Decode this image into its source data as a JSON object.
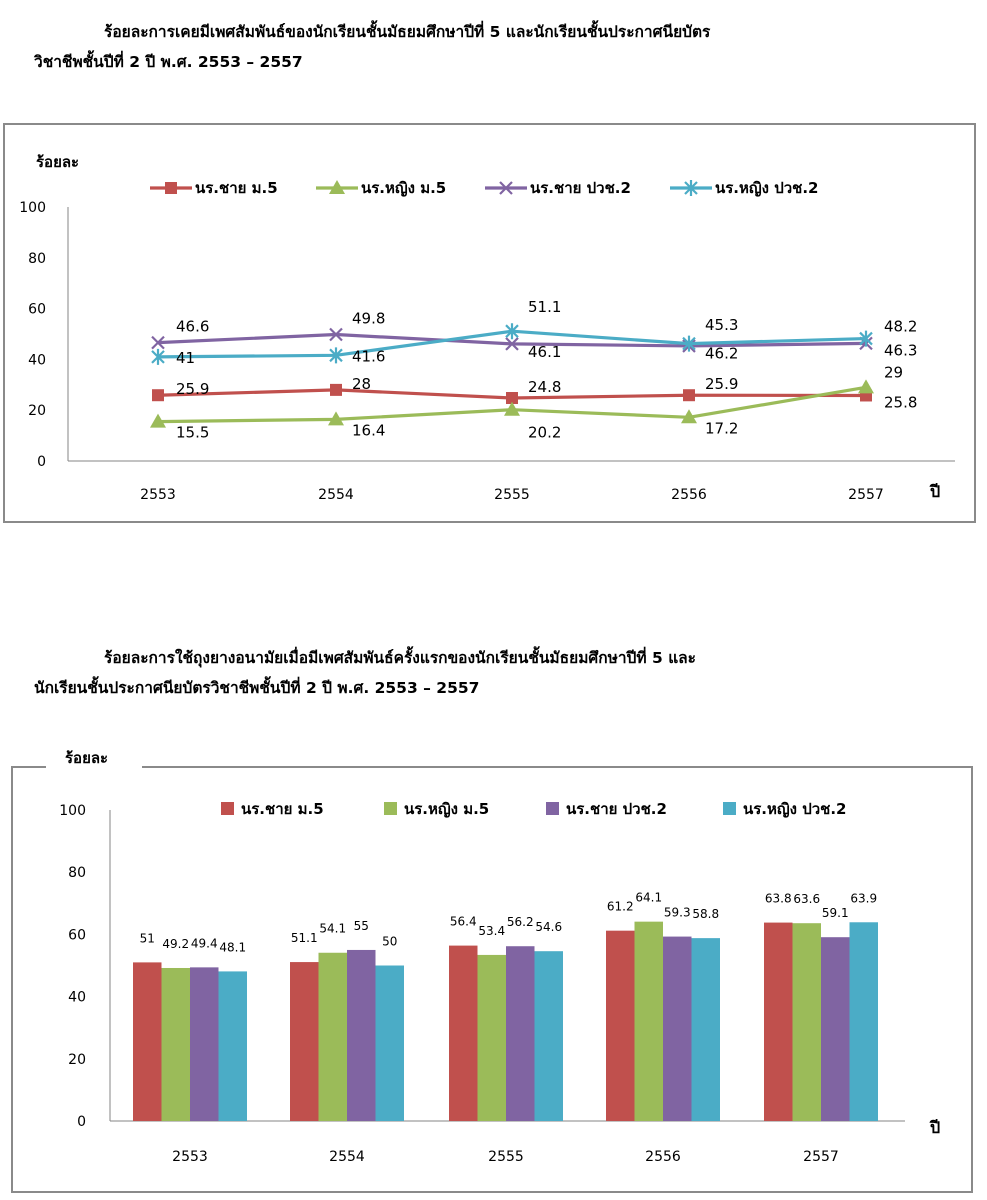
{
  "chart_data": [
    {
      "type": "line",
      "title": "ร้อยละการเคยมีเพศสัมพันธ์ของนักเรียนชั้นมัธยมศึกษาปีที่ 5  และนักเรียนชั้นประกาศนียบัตรวิชาชีพชั้นปีที่ 2 ปี พ.ศ. 2553 – 2557",
      "title_line1": "ร้อยละการเคยมีเพศสัมพันธ์ของนักเรียนชั้นมัธยมศึกษาปีที่ 5  และนักเรียนชั้นประกาศนียบัตร",
      "title_line2": "วิชาชีพชั้นปีที่ 2 ปี พ.ศ. 2553 – 2557",
      "ylabel": "ร้อยละ",
      "xlabel": "ปี",
      "categories": [
        "2553",
        "2554",
        "2555",
        "2556",
        "2557"
      ],
      "ylim": [
        0,
        100
      ],
      "yticks": [
        "0",
        "20",
        "40",
        "60",
        "80",
        "100"
      ],
      "series": [
        {
          "name": "นร.ชาย ม.5",
          "values": [
            25.9,
            28,
            24.8,
            25.9,
            25.8
          ],
          "color": "#C0504D",
          "marker": "square"
        },
        {
          "name": "นร.หญิง ม.5",
          "values": [
            15.5,
            16.4,
            20.2,
            17.2,
            29
          ],
          "color": "#9BBB59",
          "marker": "triangle"
        },
        {
          "name": "นร.ชาย ปวช.2",
          "values": [
            46.6,
            49.8,
            46.1,
            45.3,
            46.3
          ],
          "color": "#8064A2",
          "marker": "x"
        },
        {
          "name": "นร.หญิง ปวช.2",
          "values": [
            41,
            41.6,
            51.1,
            46.2,
            48.2
          ],
          "color": "#4BACC6",
          "marker": "star"
        }
      ]
    },
    {
      "type": "bar",
      "title": "ร้อยละการใช้ถุงยางอนามัยเมื่อมีเพศสัมพันธ์ครั้งแรกของนักเรียนชั้นมัธยมศึกษาปีที่ 5   และนักเรียนชั้นประกาศนียบัตรวิชาชีพชั้นปีที่ 2 ปี พ.ศ. 2553 – 2557",
      "title_line1": "ร้อยละการใช้ถุงยางอนามัยเมื่อมีเพศสัมพันธ์ครั้งแรกของนักเรียนชั้นมัธยมศึกษาปีที่ 5   และ",
      "title_line2": "นักเรียนชั้นประกาศนียบัตรวิชาชีพชั้นปีที่ 2 ปี พ.ศ. 2553 – 2557",
      "ylabel": "ร้อยละ",
      "xlabel": "ปี",
      "categories": [
        "2553",
        "2554",
        "2555",
        "2556",
        "2557"
      ],
      "ylim": [
        0,
        100
      ],
      "yticks": [
        "0",
        "20",
        "40",
        "60",
        "80",
        "100"
      ],
      "series": [
        {
          "name": "นร.ชาย ม.5",
          "values": [
            51,
            51.1,
            56.4,
            61.2,
            63.8
          ],
          "color": "#C0504D"
        },
        {
          "name": "นร.หญิง ม.5",
          "values": [
            49.2,
            54.1,
            53.4,
            64.1,
            63.6
          ],
          "color": "#9BBB59"
        },
        {
          "name": "นร.ชาย ปวช.2",
          "values": [
            49.4,
            55,
            56.2,
            59.3,
            59.1
          ],
          "color": "#8064A2"
        },
        {
          "name": "นร.หญิง ปวช.2",
          "values": [
            48.1,
            50,
            54.6,
            58.8,
            63.9
          ],
          "color": "#4BACC6"
        }
      ]
    }
  ]
}
